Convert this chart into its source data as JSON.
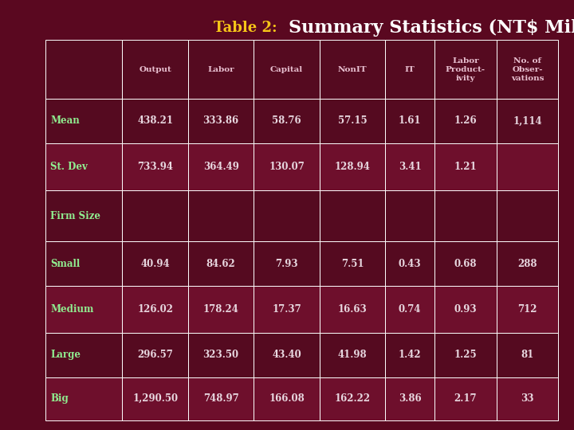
{
  "title_prefix": "Table 2:  ",
  "title_main": "Summary Statistics (NT$ Million)",
  "bg_outer": "#5a0820",
  "bg_inner": "#3a0515",
  "cell_bg_dark": "#550a20",
  "cell_bg_light": "#6e0f2c",
  "cell_bg_firm": "#4a0818",
  "header_text_color": "#e8c0d0",
  "row_label_color": "#90ee90",
  "cell_text_color": "#e8d8e0",
  "title_color1": "#f5c518",
  "title_color2": "#ffffff",
  "col_headers": [
    "Output",
    "Labor",
    "Capital",
    "NonIT",
    "IT",
    "Labor\nProduct-\nivity",
    "No. of\nObser-\nvations"
  ],
  "rows": [
    {
      "label": "Mean",
      "values": [
        "438.21",
        "333.86",
        "58.76",
        "57.15",
        "1.61",
        "1.26",
        "1,114"
      ]
    },
    {
      "label": "St. Dev",
      "values": [
        "733.94",
        "364.49",
        "130.07",
        "128.94",
        "3.41",
        "1.21",
        ""
      ]
    },
    {
      "label": "Firm Size",
      "values": [
        "",
        "",
        "",
        "",
        "",
        "",
        ""
      ]
    },
    {
      "label": "Small",
      "values": [
        "40.94",
        "84.62",
        "7.93",
        "7.51",
        "0.43",
        "0.68",
        "288"
      ]
    },
    {
      "label": "Medium",
      "values": [
        "126.02",
        "178.24",
        "17.37",
        "16.63",
        "0.74",
        "0.93",
        "712"
      ]
    },
    {
      "label": "Large",
      "values": [
        "296.57",
        "323.50",
        "43.40",
        "41.98",
        "1.42",
        "1.25",
        "81"
      ]
    },
    {
      "label": "Big",
      "values": [
        "1,290.50",
        "748.97",
        "166.08",
        "162.22",
        "3.86",
        "2.17",
        "33"
      ]
    }
  ]
}
